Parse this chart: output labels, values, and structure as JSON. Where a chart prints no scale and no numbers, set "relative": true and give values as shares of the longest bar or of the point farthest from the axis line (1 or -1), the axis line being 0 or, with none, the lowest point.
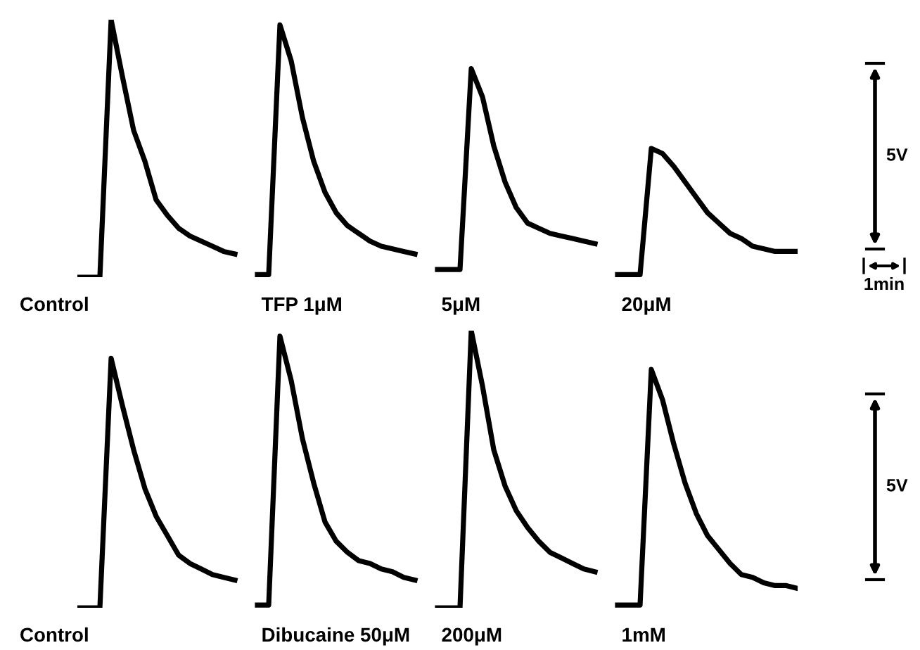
{
  "chart_data": [
    {
      "type": "line",
      "relative": true,
      "annotations": [
        "5V",
        "1min"
      ],
      "categories": [
        null,
        null,
        null,
        null,
        null,
        null,
        null,
        null,
        null,
        null,
        null,
        null,
        null,
        null,
        null,
        null,
        null,
        null,
        null,
        null,
        null,
        null,
        null,
        null,
        null,
        null,
        null,
        null,
        null,
        null,
        null,
        null,
        null,
        null,
        null,
        null,
        null,
        null,
        null,
        null,
        null,
        null,
        null,
        null,
        null,
        null,
        null,
        null,
        null,
        null,
        null,
        null,
        null,
        null,
        null,
        null,
        null,
        null,
        null,
        null,
        null,
        null,
        null,
        null,
        null
      ],
      "series": [
        {
          "name": "Control",
          "color": "#000000",
          "values": [
            0,
            0,
            0,
            1.0,
            0.78,
            0.57,
            0.45,
            0.3,
            0.24,
            0.19,
            0.16,
            0.14,
            0.12,
            0.1,
            0.09,
            null,
            null,
            null,
            null,
            null,
            null,
            null,
            null,
            null,
            null,
            null,
            null,
            null,
            null,
            null,
            null,
            null,
            null,
            null,
            null,
            null,
            null,
            null,
            null,
            null,
            null,
            null,
            null,
            null,
            null,
            null,
            null,
            null,
            null,
            null,
            null,
            null,
            null,
            null,
            null,
            null,
            null,
            null,
            null,
            null,
            null,
            null,
            null,
            null,
            null
          ]
        },
        {
          "name": "TFP 1μM",
          "color": "#000000",
          "values": [
            null,
            null,
            null,
            null,
            null,
            null,
            null,
            null,
            null,
            null,
            null,
            null,
            null,
            null,
            null,
            null,
            0.01,
            0.01,
            0.98,
            0.84,
            0.62,
            0.45,
            0.33,
            0.25,
            0.2,
            0.17,
            0.14,
            0.12,
            0.11,
            0.1,
            0.09,
            null,
            null,
            null,
            null,
            null,
            null,
            null,
            null,
            null,
            null,
            null,
            null,
            null,
            null,
            null,
            null,
            null,
            null,
            null,
            null,
            null,
            null,
            null,
            null,
            null,
            null,
            null,
            null,
            null,
            null,
            null,
            null,
            null,
            null
          ]
        },
        {
          "name": "5μM",
          "color": "#000000",
          "values": [
            null,
            null,
            null,
            null,
            null,
            null,
            null,
            null,
            null,
            null,
            null,
            null,
            null,
            null,
            null,
            null,
            null,
            null,
            null,
            null,
            null,
            null,
            null,
            null,
            null,
            null,
            null,
            null,
            null,
            null,
            null,
            null,
            0.03,
            0.03,
            0.03,
            0.81,
            0.7,
            0.51,
            0.37,
            0.27,
            0.21,
            0.19,
            0.17,
            0.16,
            0.15,
            0.14,
            0.13,
            null,
            null,
            null,
            null,
            null,
            null,
            null,
            null,
            null,
            null,
            null,
            null,
            null,
            null,
            null,
            null,
            null,
            null
          ]
        },
        {
          "name": "20μM",
          "color": "#000000",
          "values": [
            null,
            null,
            null,
            null,
            null,
            null,
            null,
            null,
            null,
            null,
            null,
            null,
            null,
            null,
            null,
            null,
            null,
            null,
            null,
            null,
            null,
            null,
            null,
            null,
            null,
            null,
            null,
            null,
            null,
            null,
            null,
            null,
            null,
            null,
            null,
            null,
            null,
            null,
            null,
            null,
            null,
            null,
            null,
            null,
            null,
            null,
            null,
            null,
            0.01,
            0.01,
            0.01,
            0.5,
            0.48,
            0.43,
            0.37,
            0.31,
            0.25,
            0.21,
            0.17,
            0.15,
            0.12,
            0.11,
            0.1,
            0.1,
            0.1
          ]
        }
      ]
    },
    {
      "type": "line",
      "relative": true,
      "annotations": [
        "5V"
      ],
      "categories": [
        null,
        null,
        null,
        null,
        null,
        null,
        null,
        null,
        null,
        null,
        null,
        null,
        null,
        null,
        null,
        null,
        null,
        null,
        null,
        null,
        null,
        null,
        null,
        null,
        null,
        null,
        null,
        null,
        null,
        null,
        null,
        null,
        null,
        null,
        null,
        null,
        null,
        null,
        null,
        null,
        null,
        null,
        null,
        null,
        null,
        null,
        null,
        null,
        null,
        null,
        null,
        null,
        null,
        null,
        null,
        null,
        null,
        null,
        null,
        null,
        null,
        null,
        null,
        null,
        null
      ],
      "series": [
        {
          "name": "Control",
          "color": "#000000",
          "values": [
            0,
            0,
            0,
            0.9,
            0.73,
            0.57,
            0.43,
            0.33,
            0.26,
            0.19,
            0.16,
            0.14,
            0.12,
            0.11,
            0.1,
            null,
            null,
            null,
            null,
            null,
            null,
            null,
            null,
            null,
            null,
            null,
            null,
            null,
            null,
            null,
            null,
            null,
            null,
            null,
            null,
            null,
            null,
            null,
            null,
            null,
            null,
            null,
            null,
            null,
            null,
            null,
            null,
            null,
            null,
            null,
            null,
            null,
            null,
            null,
            null,
            null,
            null,
            null,
            null,
            null,
            null,
            null,
            null,
            null,
            null
          ]
        },
        {
          "name": "Dibucaine 50μM",
          "color": "#000000",
          "values": [
            null,
            null,
            null,
            null,
            null,
            null,
            null,
            null,
            null,
            null,
            null,
            null,
            null,
            null,
            null,
            null,
            0.01,
            0.01,
            0.98,
            0.82,
            0.61,
            0.45,
            0.31,
            0.24,
            0.2,
            0.17,
            0.16,
            0.14,
            0.13,
            0.11,
            0.1,
            null,
            null,
            null,
            null,
            null,
            null,
            null,
            null,
            null,
            null,
            null,
            null,
            null,
            null,
            null,
            null,
            null,
            null,
            null,
            null,
            null,
            null,
            null,
            null,
            null,
            null,
            null,
            null,
            null,
            null,
            null,
            null,
            null,
            null
          ]
        },
        {
          "name": "200μM",
          "color": "#000000",
          "values": [
            null,
            null,
            null,
            null,
            null,
            null,
            null,
            null,
            null,
            null,
            null,
            null,
            null,
            null,
            null,
            null,
            null,
            null,
            null,
            null,
            null,
            null,
            null,
            null,
            null,
            null,
            null,
            null,
            null,
            null,
            null,
            null,
            0,
            0,
            0,
            1.0,
            0.8,
            0.57,
            0.44,
            0.35,
            0.29,
            0.24,
            0.2,
            0.18,
            0.16,
            0.14,
            0.13,
            null,
            null,
            null,
            null,
            null,
            null,
            null,
            null,
            null,
            null,
            null,
            null,
            null,
            null,
            null,
            null,
            null,
            null
          ]
        },
        {
          "name": "1mM",
          "color": "#000000",
          "values": [
            null,
            null,
            null,
            null,
            null,
            null,
            null,
            null,
            null,
            null,
            null,
            null,
            null,
            null,
            null,
            null,
            null,
            null,
            null,
            null,
            null,
            null,
            null,
            null,
            null,
            null,
            null,
            null,
            null,
            null,
            null,
            null,
            null,
            null,
            null,
            null,
            null,
            null,
            null,
            null,
            null,
            null,
            null,
            null,
            null,
            null,
            null,
            null,
            0.01,
            0.01,
            0.01,
            0.86,
            0.75,
            0.59,
            0.45,
            0.34,
            0.26,
            0.21,
            0.16,
            0.12,
            0.11,
            0.09,
            0.08,
            0.08,
            0.07
          ]
        }
      ]
    }
  ]
}
